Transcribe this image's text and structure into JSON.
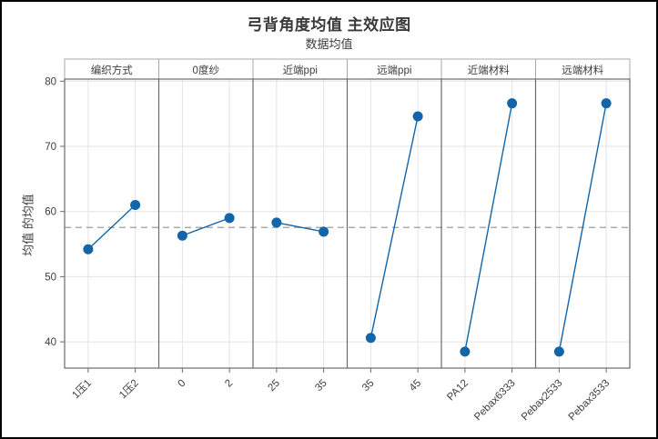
{
  "window": {
    "background": "#ffffff",
    "border_color": "#000000"
  },
  "chart_data": {
    "type": "line",
    "title": "弓背角度均值 主效应图",
    "subtitle": "数据均值",
    "ylabel": "均值 的均值",
    "yticks": [
      40,
      50,
      60,
      70,
      80
    ],
    "ylim": [
      36,
      80.3
    ],
    "grid": true,
    "overall_mean": 57.55,
    "panels": [
      {
        "label": "编织方式",
        "categories": [
          "1压1",
          "1压2"
        ],
        "values": [
          54.2,
          61.0
        ]
      },
      {
        "label": "0度纱",
        "categories": [
          "0",
          "2"
        ],
        "values": [
          56.3,
          59.0
        ]
      },
      {
        "label": "近端ppi",
        "categories": [
          "25",
          "35"
        ],
        "values": [
          58.3,
          56.9
        ]
      },
      {
        "label": "远端ppi",
        "categories": [
          "35",
          "45"
        ],
        "values": [
          40.6,
          74.6
        ]
      },
      {
        "label": "近端材料",
        "categories": [
          "PA12",
          "Pebax6333"
        ],
        "values": [
          38.5,
          76.6
        ]
      },
      {
        "label": "远端材料",
        "categories": [
          "Pebax2533",
          "Pebax3533"
        ],
        "values": [
          38.5,
          76.6
        ]
      }
    ],
    "colors": {
      "point": "#1265a8",
      "line": "#1265a8",
      "mean_line": "#9c9c9c",
      "gridline": "#e3e3e3",
      "frame": "#6b6b6b",
      "header_border": "#a9a9a9",
      "header_bg": "#ffffff",
      "text": "#3d3d3d"
    }
  }
}
